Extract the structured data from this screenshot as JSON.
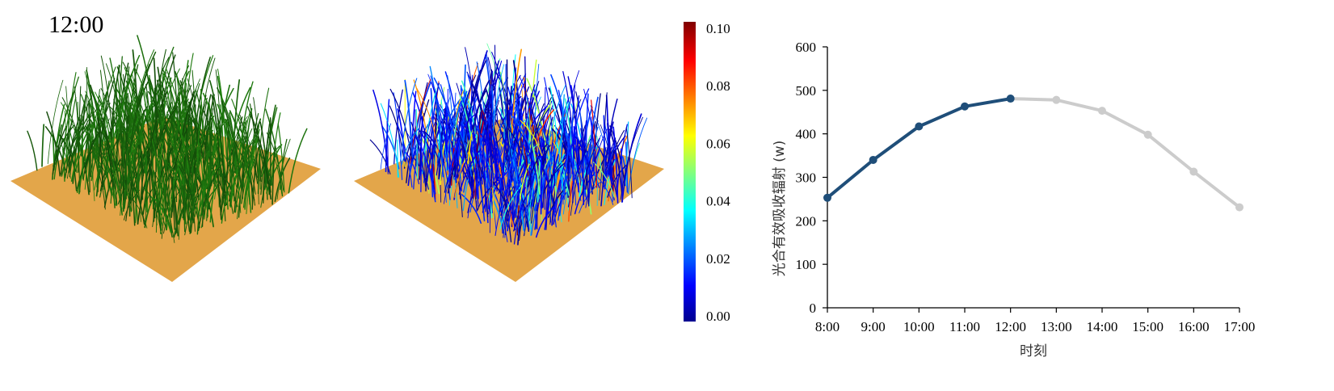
{
  "time_label": "12:00",
  "colors": {
    "soil": "#E3A64A",
    "grass": "#1F6E12",
    "past_line": "#1F4E79",
    "future_line": "#CCCCCC"
  },
  "colorbar": {
    "ticks": [
      "0.00",
      "0.02",
      "0.04",
      "0.06",
      "0.08",
      "0.10"
    ],
    "min": 0,
    "max": 0.1,
    "colormap": "jet"
  },
  "chart_data": {
    "type": "line",
    "ylabel": "光合有效吸收辐射 (w)",
    "xlabel": "时刻",
    "categories": [
      "8:00",
      "9:00",
      "10:00",
      "11:00",
      "12:00",
      "13:00",
      "14:00",
      "15:00",
      "16:00",
      "17:00"
    ],
    "ylim": [
      0,
      600
    ],
    "yticks": [
      "0",
      "100",
      "200",
      "300",
      "400",
      "500",
      "600"
    ],
    "highlight_until": "12:00",
    "series": [
      {
        "values": [
          253,
          340,
          417,
          463,
          481,
          478,
          453,
          398,
          313,
          231
        ]
      }
    ],
    "grid": false,
    "legend": "none"
  }
}
